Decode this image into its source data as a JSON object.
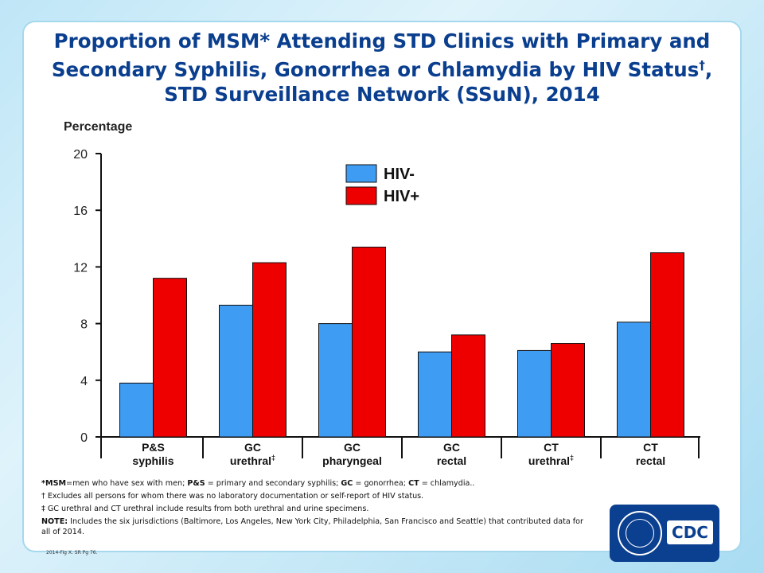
{
  "title": {
    "line1": "Proportion of MSM* Attending STD Clinics with Primary and",
    "line2": "Secondary Syphilis, Gonorrhea or Chlamydia by HIV Status",
    "line2_mark": "†",
    "line2_end": ",",
    "line3": "STD Surveillance Network (SSuN), 2014"
  },
  "colors": {
    "hiv_neg": "#3f9cf3",
    "hiv_pos": "#ee0000",
    "title": "#0a3e8e"
  },
  "chart_data": {
    "type": "bar",
    "ylabel": "Percentage",
    "ylim": [
      0,
      20
    ],
    "yticks": [
      0,
      4,
      8,
      12,
      16,
      20
    ],
    "grid": false,
    "legend_position": "top-left",
    "categories": [
      {
        "line1": "P&S",
        "line2": "syphilis",
        "mark": ""
      },
      {
        "line1": "GC",
        "line2": "urethral",
        "mark": "‡"
      },
      {
        "line1": "GC",
        "line2": "pharyngeal",
        "mark": ""
      },
      {
        "line1": "GC",
        "line2": "rectal",
        "mark": ""
      },
      {
        "line1": "CT",
        "line2": "urethral",
        "mark": "‡"
      },
      {
        "line1": "CT",
        "line2": "rectal",
        "mark": ""
      }
    ],
    "series": [
      {
        "name": "HIV-",
        "color": "#3f9cf3",
        "values": [
          3.8,
          9.3,
          8.0,
          6.0,
          6.1,
          8.1
        ]
      },
      {
        "name": "HIV+",
        "color": "#ee0000",
        "values": [
          11.2,
          12.3,
          13.4,
          7.2,
          6.6,
          13.0
        ]
      }
    ]
  },
  "footnotes": {
    "n1_msm": "*MSM",
    "n1_msm_def": "=men who have sex with men; ",
    "n1_ps": "P&S",
    "n1_ps_def": " = primary and secondary syphilis; ",
    "n1_gc": "GC",
    "n1_gc_def": " = gonorrhea; ",
    "n1_ct": "CT",
    "n1_ct_def": " = chlamydia..",
    "n2": "† Excludes all persons for whom there was no laboratory documentation or self-report of HIV status.",
    "n3": "‡ GC urethral and CT urethral include results from both urethral and urine specimens.",
    "n4_label": "NOTE:",
    "n4_text": " Includes the six jurisdictions (Baltimore, Los Angeles, New York City, Philadelphia, San Francisco and Seattle) that contributed data for all of 2014."
  },
  "ref": "2014-Fig X. SR Pg 76.",
  "logo": {
    "text": "CDC"
  }
}
